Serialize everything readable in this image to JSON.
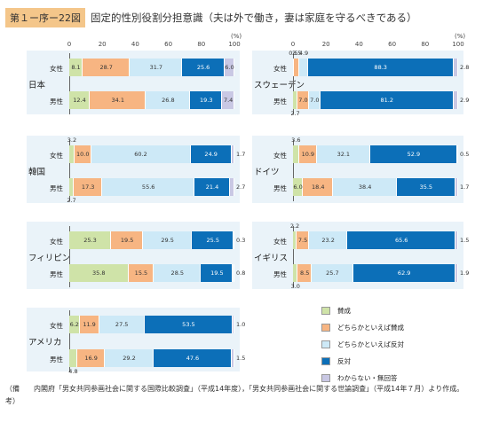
{
  "figure": {
    "label": "第１ー序ー22図",
    "title": "固定的性別役割分担意識（夫は外で働き，妻は家庭を守るべきである）",
    "axis_unit": "(%)",
    "ticks": [
      "0",
      "20",
      "40",
      "60",
      "80",
      "100"
    ]
  },
  "colors": {
    "agree": "#cfe3a8",
    "somewhat_agree": "#f7b582",
    "somewhat_disagree": "#cde9f7",
    "disagree": "#0c6fb8",
    "dk": "#c9c8e4",
    "panel_bg": "#eaf3f9"
  },
  "legend": [
    {
      "key": "agree",
      "label": "賛成"
    },
    {
      "key": "somewhat_agree",
      "label": "どちらかといえば賛成"
    },
    {
      "key": "somewhat_disagree",
      "label": "どちらかといえば反対"
    },
    {
      "key": "disagree",
      "label": "反対"
    },
    {
      "key": "dk",
      "label": "わからない・無回答"
    }
  ],
  "chart_data": {
    "type": "bar",
    "stacked": true,
    "unit": "%",
    "xlim": [
      0,
      100
    ],
    "categories_order": [
      "賛成",
      "どちらかといえば賛成",
      "どちらかといえば反対",
      "反対",
      "わからない・無回答"
    ],
    "countries": [
      {
        "name": "日本",
        "rows": [
          {
            "label": "女性",
            "values": [
              8.1,
              28.7,
              31.7,
              25.6,
              6.0
            ],
            "text": [
              "8.1",
              "28.7",
              "31.7",
              "25.6",
              "6.0"
            ]
          },
          {
            "label": "男性",
            "values": [
              12.4,
              34.1,
              26.8,
              19.3,
              7.4
            ],
            "text": [
              "12.4",
              "34.1",
              "26.8",
              "19.3",
              "7.4"
            ]
          }
        ]
      },
      {
        "name": "スウェーデン",
        "rows": [
          {
            "label": "女性",
            "values": [
              0.5,
              3.5,
              4.9,
              88.3,
              2.8
            ],
            "text": [
              "0.5",
              "3.5",
              "4.9",
              "88.3",
              "2.8"
            ]
          },
          {
            "label": "男性",
            "values": [
              2.7,
              7.0,
              7.0,
              81.2,
              2.9
            ],
            "text": [
              "2.7",
              "7.0",
              "7.0",
              "81.2",
              "2.9"
            ]
          }
        ]
      },
      {
        "name": "韓国",
        "rows": [
          {
            "label": "女性",
            "values": [
              3.2,
              10.0,
              60.2,
              24.9,
              1.7
            ],
            "text": [
              "3.2",
              "10.0",
              "60.2",
              "24.9",
              "1.7"
            ]
          },
          {
            "label": "男性",
            "values": [
              2.7,
              17.3,
              55.6,
              21.4,
              2.7
            ],
            "text": [
              "2.7",
              "17.3",
              "55.6",
              "21.4",
              "2.7"
            ]
          }
        ]
      },
      {
        "name": "ドイツ",
        "rows": [
          {
            "label": "女性",
            "values": [
              3.6,
              10.9,
              32.1,
              52.9,
              0.5
            ],
            "text": [
              "3.6",
              "10.9",
              "32.1",
              "52.9",
              "0.5"
            ]
          },
          {
            "label": "男性",
            "values": [
              6.0,
              18.4,
              38.4,
              35.5,
              1.7
            ],
            "text": [
              "6.0",
              "18.4",
              "38.4",
              "35.5",
              "1.7"
            ]
          }
        ]
      },
      {
        "name": "フィリピン",
        "rows": [
          {
            "label": "女性",
            "values": [
              25.3,
              19.5,
              29.5,
              25.5,
              0.3
            ],
            "text": [
              "25.3",
              "19.5",
              "29.5",
              "25.5",
              "0.3"
            ]
          },
          {
            "label": "男性",
            "values": [
              35.8,
              15.5,
              28.5,
              19.5,
              0.8
            ],
            "text": [
              "35.8",
              "15.5",
              "28.5",
              "19.5",
              "0.8"
            ]
          }
        ]
      },
      {
        "name": "イギリス",
        "rows": [
          {
            "label": "女性",
            "values": [
              2.2,
              7.5,
              23.2,
              65.6,
              1.5
            ],
            "text": [
              "2.2",
              "7.5",
              "23.2",
              "65.6",
              "1.5"
            ]
          },
          {
            "label": "男性",
            "values": [
              3.0,
              8.5,
              25.7,
              62.9,
              1.9
            ],
            "text": [
              "3.0",
              "8.5",
              "25.7",
              "62.9",
              "1.9"
            ]
          }
        ]
      },
      {
        "name": "アメリカ",
        "rows": [
          {
            "label": "女性",
            "values": [
              6.2,
              11.9,
              27.5,
              53.5,
              1.0
            ],
            "text": [
              "6.2",
              "11.9",
              "27.5",
              "53.5",
              "1.0"
            ]
          },
          {
            "label": "男性",
            "values": [
              4.8,
              16.9,
              29.2,
              47.6,
              1.5
            ],
            "text": [
              "4.8",
              "16.9",
              "29.2",
              "47.6",
              "1.5"
            ]
          }
        ]
      }
    ]
  },
  "note": {
    "key": "（備考）",
    "text": "内閣府「男女共同参画社会に関する国際比較調査」（平成14年度），「男女共同参画社会に関する世論調査」（平成14年７月）より作成。"
  }
}
